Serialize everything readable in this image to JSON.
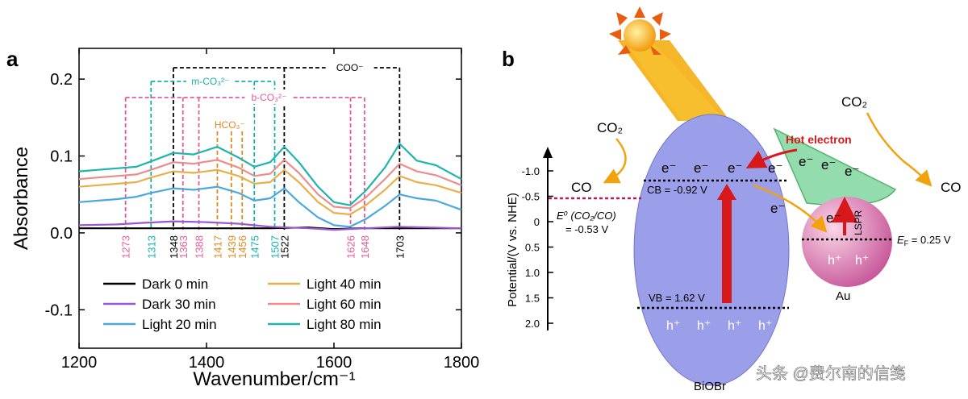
{
  "panel_a": {
    "label": "a",
    "chart_data": {
      "type": "line",
      "title": "",
      "xlabel": "Wavenumber/cm⁻¹",
      "ylabel": "Absorbance",
      "xlim": [
        1200,
        1800
      ],
      "ylim": [
        -0.15,
        0.24
      ],
      "xticks": [
        1200,
        1400,
        1600,
        1800
      ],
      "yticks": [
        -0.1,
        0.0,
        0.1,
        0.2
      ],
      "ytick_labels": [
        "-0.1",
        "0.0",
        "0.1",
        "0.2"
      ],
      "series": [
        {
          "name": "Dark 0 min",
          "color": "#000000",
          "x": [
            1200,
            1300,
            1400,
            1500,
            1560,
            1600,
            1640,
            1700,
            1750,
            1800
          ],
          "y": [
            0.006,
            0.006,
            0.006,
            0.006,
            0.007,
            0.005,
            0.006,
            0.006,
            0.006,
            0.006
          ]
        },
        {
          "name": "Dark 30 min",
          "color": "#9b59d0",
          "x": [
            1200,
            1260,
            1300,
            1348,
            1400,
            1450,
            1500,
            1560,
            1600,
            1650,
            1700,
            1800
          ],
          "y": [
            0.01,
            0.011,
            0.013,
            0.015,
            0.014,
            0.012,
            0.008,
            0.006,
            0.004,
            0.006,
            0.008,
            0.006
          ]
        },
        {
          "name": "Light 20 min",
          "color": "#4aa8e0",
          "x": [
            1200,
            1230,
            1260,
            1290,
            1313,
            1348,
            1380,
            1417,
            1450,
            1475,
            1500,
            1522,
            1545,
            1575,
            1600,
            1625,
            1650,
            1680,
            1703,
            1730,
            1760,
            1800
          ],
          "y": [
            0.04,
            0.042,
            0.044,
            0.047,
            0.052,
            0.058,
            0.056,
            0.06,
            0.052,
            0.042,
            0.045,
            0.058,
            0.04,
            0.02,
            0.01,
            0.008,
            0.018,
            0.035,
            0.05,
            0.045,
            0.042,
            0.03
          ]
        },
        {
          "name": "Light 40 min",
          "color": "#e8b04a",
          "x": [
            1200,
            1230,
            1260,
            1290,
            1313,
            1348,
            1380,
            1417,
            1450,
            1475,
            1500,
            1522,
            1545,
            1575,
            1600,
            1625,
            1650,
            1680,
            1703,
            1730,
            1760,
            1800
          ],
          "y": [
            0.06,
            0.062,
            0.064,
            0.066,
            0.072,
            0.08,
            0.078,
            0.082,
            0.074,
            0.064,
            0.066,
            0.082,
            0.066,
            0.04,
            0.026,
            0.024,
            0.036,
            0.056,
            0.074,
            0.066,
            0.062,
            0.052
          ]
        },
        {
          "name": "Light 60 min",
          "color": "#ee8c8c",
          "x": [
            1200,
            1230,
            1260,
            1290,
            1313,
            1348,
            1380,
            1417,
            1450,
            1475,
            1500,
            1522,
            1545,
            1575,
            1600,
            1625,
            1650,
            1680,
            1703,
            1730,
            1760,
            1800
          ],
          "y": [
            0.07,
            0.072,
            0.074,
            0.076,
            0.082,
            0.092,
            0.09,
            0.095,
            0.085,
            0.074,
            0.077,
            0.095,
            0.078,
            0.05,
            0.034,
            0.032,
            0.046,
            0.07,
            0.09,
            0.08,
            0.075,
            0.062
          ]
        },
        {
          "name": "Light 80 min",
          "color": "#1fb5ad",
          "x": [
            1200,
            1230,
            1260,
            1290,
            1313,
            1348,
            1380,
            1417,
            1450,
            1475,
            1500,
            1522,
            1545,
            1575,
            1600,
            1625,
            1650,
            1680,
            1703,
            1730,
            1760,
            1800
          ],
          "y": [
            0.08,
            0.082,
            0.084,
            0.086,
            0.093,
            0.104,
            0.102,
            0.112,
            0.098,
            0.086,
            0.092,
            0.112,
            0.092,
            0.06,
            0.04,
            0.036,
            0.055,
            0.085,
            0.116,
            0.094,
            0.088,
            0.07
          ]
        }
      ],
      "legend_columns": [
        [
          "Dark 0 min",
          "Dark 30 min",
          "Light 20 min"
        ],
        [
          "Light 40 min",
          "Light 60 min",
          "Light 80 min"
        ]
      ],
      "peaks": [
        {
          "label": "1273",
          "x": 1273,
          "color": "#e85a9a"
        },
        {
          "label": "1313",
          "x": 1313,
          "color": "#16b0b5"
        },
        {
          "label": "1348",
          "x": 1348,
          "color": "#000000"
        },
        {
          "label": "1363",
          "x": 1363,
          "color": "#e85a9a"
        },
        {
          "label": "1388",
          "x": 1388,
          "color": "#e85a9a"
        },
        {
          "label": "1417",
          "x": 1417,
          "color": "#e08a1e"
        },
        {
          "label": "1439",
          "x": 1439,
          "color": "#e08a1e"
        },
        {
          "label": "1456",
          "x": 1456,
          "color": "#e08a1e"
        },
        {
          "label": "1475",
          "x": 1475,
          "color": "#16b0b5"
        },
        {
          "label": "1507",
          "x": 1507,
          "color": "#16b0b5"
        },
        {
          "label": "1522",
          "x": 1522,
          "color": "#000000"
        },
        {
          "label": "1626",
          "x": 1626,
          "color": "#e85a9a"
        },
        {
          "label": "1648",
          "x": 1648,
          "color": "#e85a9a"
        },
        {
          "label": "1703",
          "x": 1703,
          "color": "#000000"
        }
      ],
      "assignments": [
        {
          "label": "COO⁻",
          "color": "#000000",
          "x_from": 1348,
          "x_to": 1703
        },
        {
          "label": "m-CO₃²⁻",
          "color": "#16b0b5",
          "x_from": 1313,
          "x_to": 1507
        },
        {
          "label": "b-CO₃²⁻",
          "color": "#e85a9a",
          "x_from": 1273,
          "x_to": 1648
        },
        {
          "label": "HCO₃⁻",
          "color": "#e08a1e",
          "x_from": 1417,
          "x_to": 1456
        }
      ]
    }
  },
  "panel_b": {
    "label": "b",
    "y_axis_label": "Potential/(V vs. NHE)",
    "potential_ticks": [
      "-1.0",
      "-0.5",
      "0",
      "0.5",
      "1.0",
      "1.5",
      "2.0"
    ],
    "semiconductor_label": "BiOBr",
    "metal_label": "Au",
    "cb_label": "CB = -0.92 V",
    "vb_label": "VB = 1.62 V",
    "ef_label": "E",
    "ef_subscript": "F",
    "ef_value": " = 0.25 V",
    "redox_label": "E⁰ (CO₂/CO)",
    "redox_value": "= -0.53 V",
    "hot_electron_label": "Hot electron",
    "lspr_label": "LSPR",
    "co2_label": "CO₂",
    "co_label": "CO",
    "electron_symbol": "e⁻",
    "hole_symbol": "h⁺",
    "colors": {
      "sun_beam": "#f5b21d",
      "semiconductor": "#9b9ee8",
      "gold": "#e389b7",
      "band_arrow": "#d7191c",
      "lspr_region": "#7fd6a0",
      "arrow_orange": "#f2a20c"
    }
  },
  "watermark": "头条 @费尔南的信笺"
}
